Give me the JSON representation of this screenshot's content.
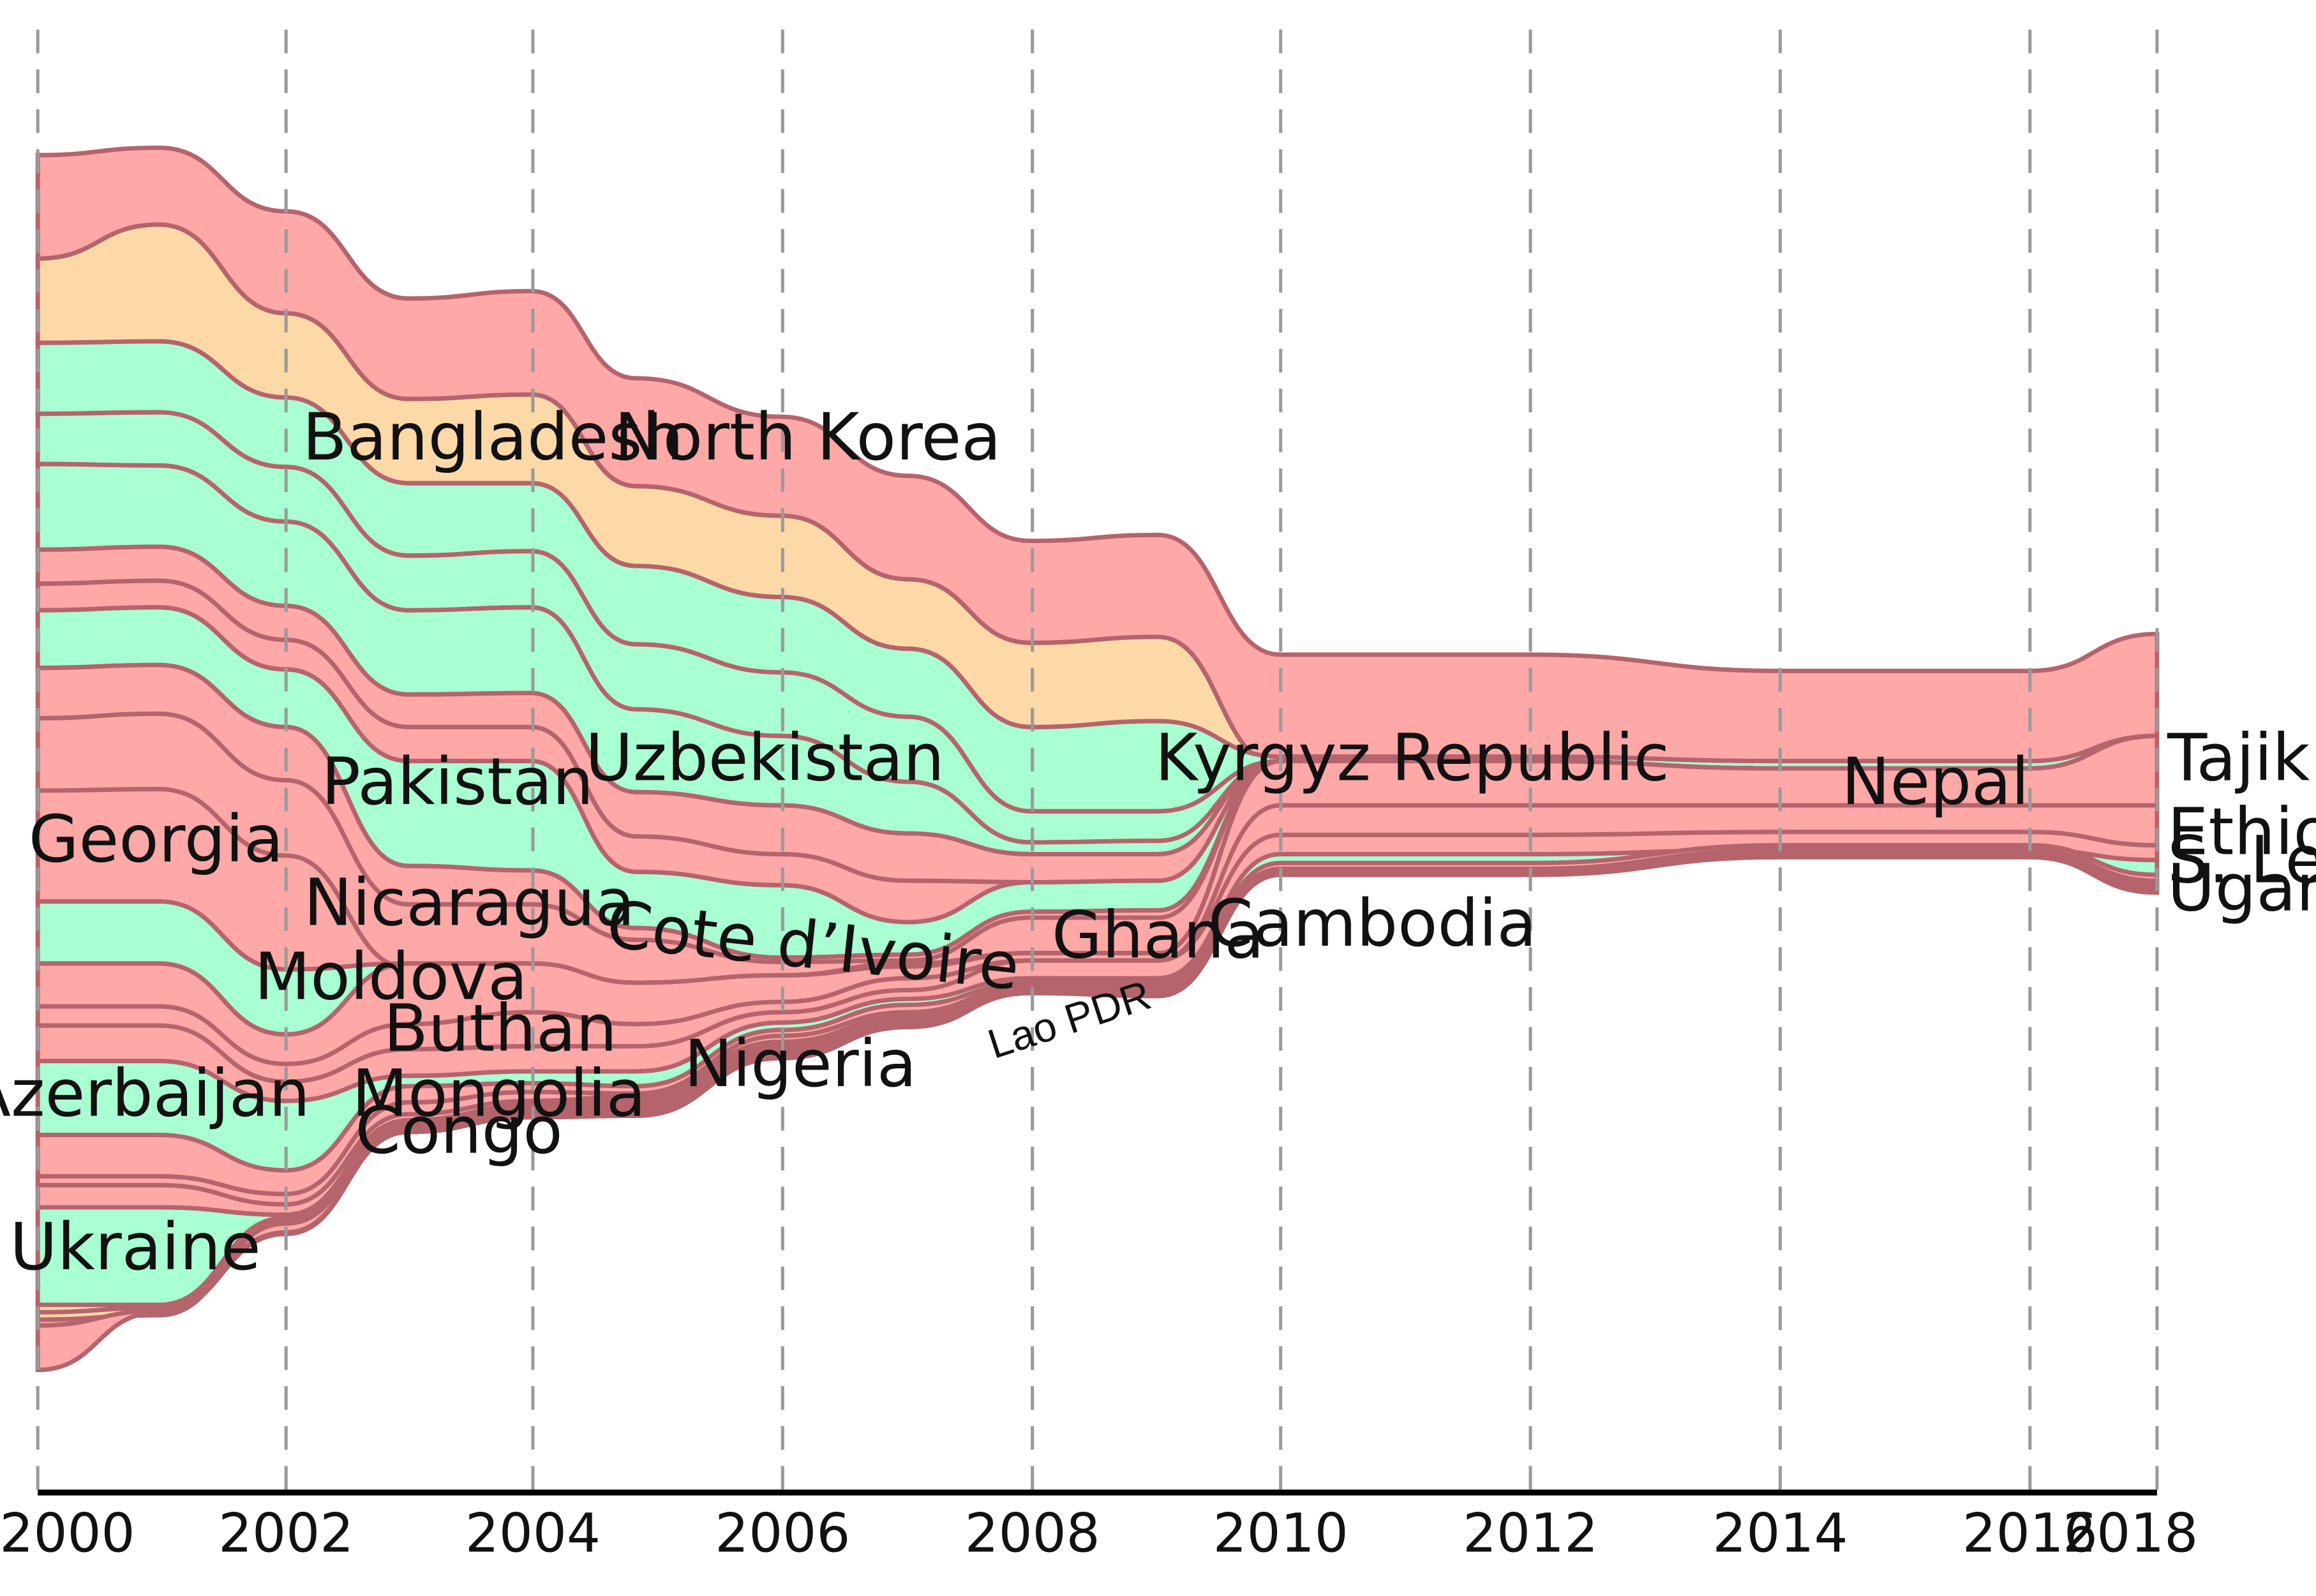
{
  "chart_data": {
    "type": "area",
    "title": "",
    "xlabel": "",
    "ylabel": "",
    "xlim": [
      2000,
      2018
    ],
    "x_ticks": [
      "2000",
      "2002",
      "2004",
      "2006",
      "2008",
      "2010",
      "2012",
      "2014",
      "2016",
      "2018"
    ],
    "grid": "vertical dashed",
    "colors": {
      "red": "#ffa8a8",
      "orange": "#fdd9a7",
      "green": "#a8ffd1",
      "stroke": "#b5646c"
    },
    "labels": [
      {
        "text": "Bangladesh"
      },
      {
        "text": "North Korea"
      },
      {
        "text": "Uzbekistan"
      },
      {
        "text": "Kyrgyz Republic"
      },
      {
        "text": "Nepal"
      },
      {
        "text": "Tajikistan"
      },
      {
        "text": "Ethiopia"
      },
      {
        "text": "S. Leone"
      },
      {
        "text": "Uganda"
      },
      {
        "text": "Pakistan"
      },
      {
        "text": "Georgia"
      },
      {
        "text": "Nicaragua"
      },
      {
        "text": "Moldova"
      },
      {
        "text": "Cote d’Ivoire"
      },
      {
        "text": "Ghana"
      },
      {
        "text": "Cambodia"
      },
      {
        "text": "Buthan"
      },
      {
        "text": "Nigeria"
      },
      {
        "text": "Lao PDR"
      },
      {
        "text": "Azerbaijan"
      },
      {
        "text": "Mongolia"
      },
      {
        "text": "Congo"
      },
      {
        "text": "Ukraine"
      }
    ]
  }
}
